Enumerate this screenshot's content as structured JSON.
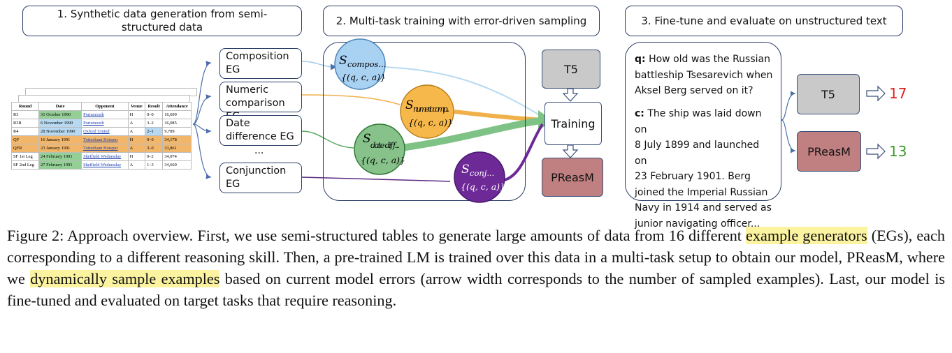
{
  "header": {
    "step1": "1. Synthetic data generation from semi-structured data",
    "step2": "2. Multi-task training with error-driven sampling",
    "step3": "3. Fine-tune and evaluate on unstructured text"
  },
  "table": {
    "columns": [
      "Round",
      "Date",
      "Opponent",
      "Venue",
      "Result",
      "Attendance"
    ],
    "rows": [
      [
        "R3",
        "31 October 1990",
        "Portsmouth",
        "H",
        "0–0",
        "16,699"
      ],
      [
        "R3R",
        "6 November 1990",
        "Portsmouth",
        "A",
        "3–2",
        "16,085"
      ],
      [
        "R4",
        "28 November 1990",
        "Oxford United",
        "A",
        "2–1",
        "9,789"
      ],
      [
        "QF",
        "16 January 1991",
        "Tottenham Hotspur",
        "H",
        "0–0",
        "34,178"
      ],
      [
        "QFR",
        "23 January 1991",
        "Tottenham Hotspur",
        "A",
        "3–0",
        "33,861"
      ],
      [
        "SF 1st Leg",
        "24 February 1991",
        "Sheffield Wednesday",
        "H",
        "0–2",
        "34,074"
      ],
      [
        "SF 2nd Leg",
        "27 February 1991",
        "Sheffield Wednesday",
        "A",
        "1–3",
        "34,669"
      ]
    ]
  },
  "generators": [
    {
      "line1": "Composition",
      "line2": "EG"
    },
    {
      "line1": "Numeric",
      "line2": "comparison EG"
    },
    {
      "line1": "Date",
      "line2": "difference EG"
    },
    {
      "line1": "Conjunction",
      "line2": "EG"
    }
  ],
  "ellipsis": "...",
  "circles": [
    {
      "label": "S",
      "sub": "compos...",
      "tuple": "{(q, c, a)}",
      "fill": "#a9d1f2",
      "stroke": "#4e86b8"
    },
    {
      "label": "S",
      "sub": "numeric comp...",
      "tuple": "{(q, c, a)}",
      "fill": "#f6b84a",
      "stroke": "#b8801a"
    },
    {
      "label": "S",
      "sub": "date diff...",
      "tuple": "{(q, c, a)}",
      "fill": "#86c28a",
      "stroke": "#2e7a34"
    },
    {
      "label": "S",
      "sub": "conj...",
      "tuple": "{(q, c, a)}",
      "fill": "#6d2a96",
      "stroke": "#4a1670"
    }
  ],
  "training": {
    "t5": "T5",
    "training": "Training",
    "preasm": "PReasM"
  },
  "evaluation": {
    "q_label": "q:",
    "q_text": [
      "How old was the Russian",
      "battleship Tsesarevich when",
      "Aksel Berg served on it?"
    ],
    "c_label": "c:",
    "c_text": [
      "The ship was laid down on",
      "8 July 1899 and launched on",
      "23 February 1901. Berg",
      "joined the Imperial Russian",
      "Navy in 1914 and served as",
      "junior navigating officer..."
    ],
    "t5": "T5",
    "preasm": "PReasM",
    "t5_score": "17",
    "preasm_score": "13",
    "t5_score_color": "#e02020",
    "preasm_score_color": "#3c9a2c"
  },
  "caption": {
    "part1": "Figure 2: Approach overview. First, we use semi-structured tables to generate large amounts of data from 16 different ",
    "hl1": "example generators",
    "part2": " (EGs), each corresponding to a different reasoning skill. Then, a pre-trained LM is trained over this data in a multi-task setup to obtain our model, PReasM, where we ",
    "hl2": "dynamically sample examples",
    "part3": " based on current model errors (arrow width corresponds to the number of sampled examples). Last, our model is fine-tuned and evaluated on target tasks that require reasoning."
  }
}
